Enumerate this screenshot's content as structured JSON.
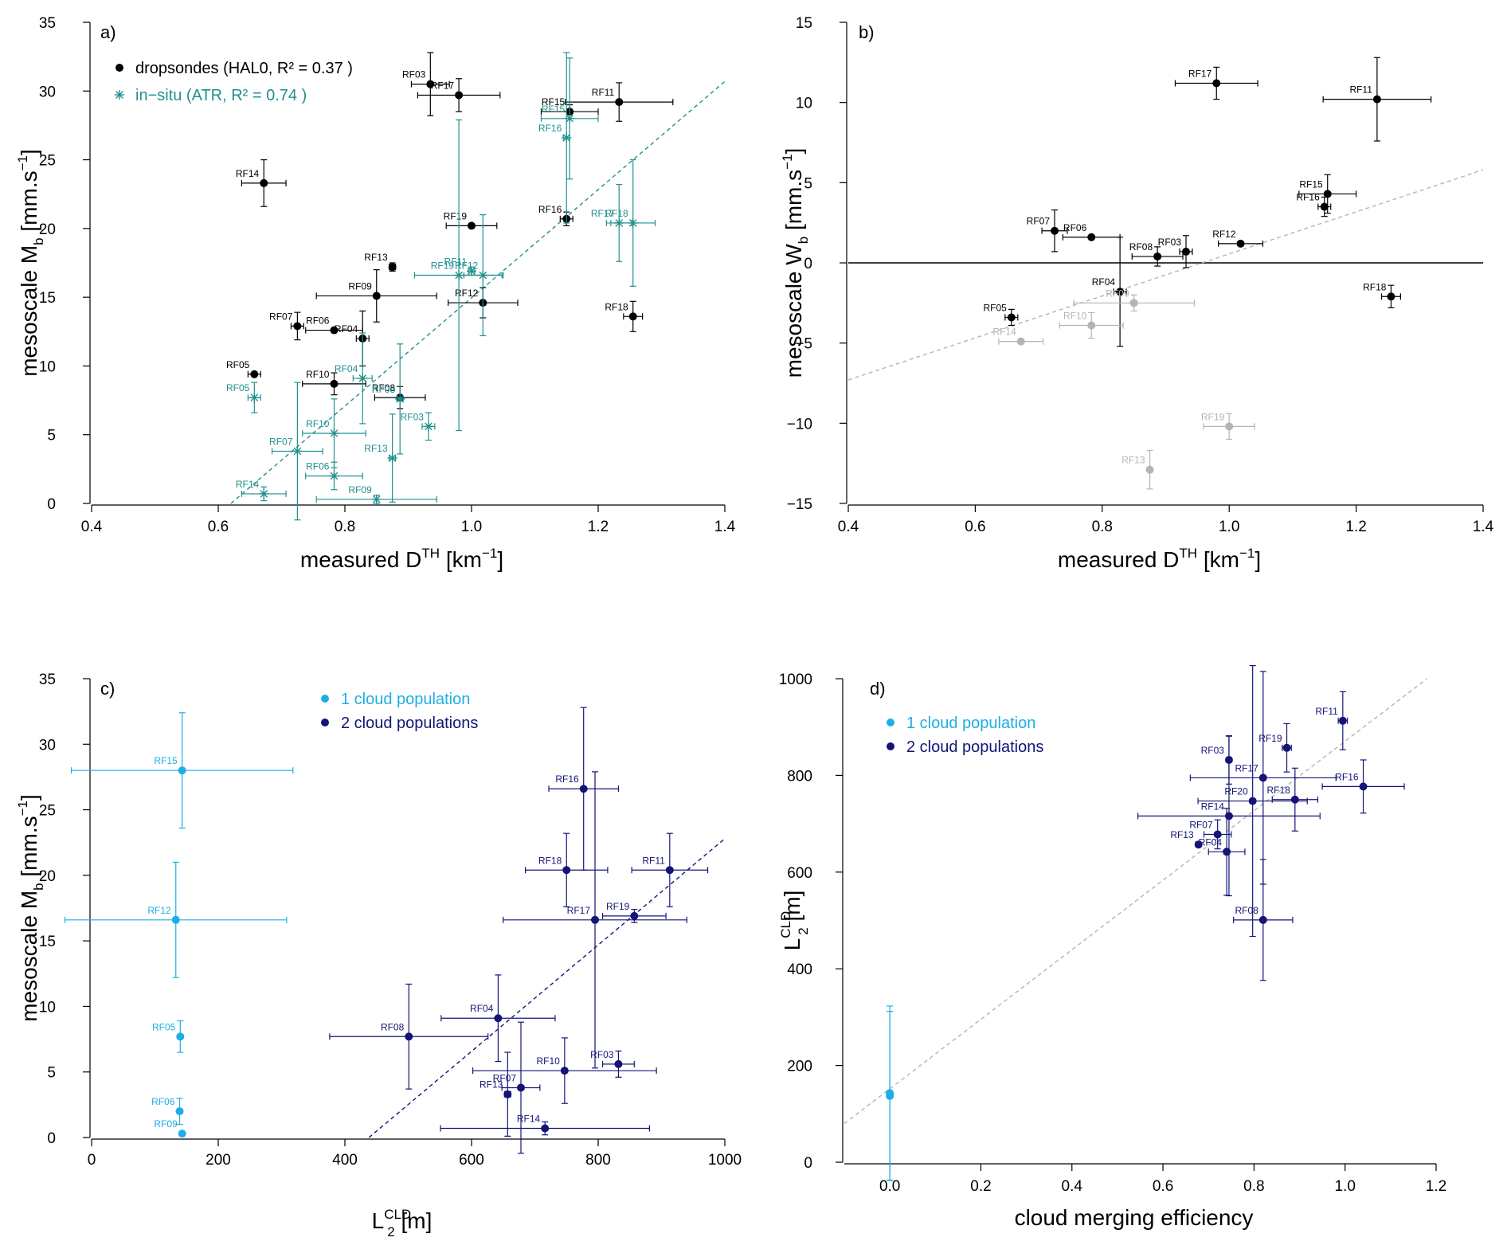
{
  "figure": {
    "panels": [
      {
        "letter": "a)",
        "xlabel": {
          "main": "measured D",
          "sup": "TH",
          "unit_open": " [km",
          "unit_sup": "−1",
          "unit_close": "]"
        },
        "ylabel": {
          "main": "mesoscale M",
          "sub": "b",
          "unit_open": " [mm.s",
          "unit_sup": "−1",
          "unit_close": "]"
        },
        "legend": [
          {
            "label": "dropsondes (HAL0, R² = 0.37 )",
            "color": "#000000",
            "marker": "dot"
          },
          {
            "label": "in−situ (ATR, R² = 0.74 )",
            "color": "#20908e",
            "marker": "star"
          }
        ]
      },
      {
        "letter": "b)",
        "xlabel": {
          "main": "measured D",
          "sup": "TH",
          "unit_open": " [km",
          "unit_sup": "−1",
          "unit_close": "]"
        },
        "ylabel": {
          "main": "mesoscale W",
          "sub": "b",
          "unit_open": " [mm.s",
          "unit_sup": "−1",
          "unit_close": "]"
        },
        "legend": []
      },
      {
        "letter": "c)",
        "xlabel": {
          "main": "L",
          "sub": "2",
          "sup": "CLD",
          "unit_open": " [m]"
        },
        "ylabel": {
          "main": "mesoscale M",
          "sub": "b",
          "unit_open": " [mm.s",
          "unit_sup": "−1",
          "unit_close": "]"
        },
        "legend": [
          {
            "label": "1 cloud population",
            "color": "#1eaee6",
            "marker": "dot"
          },
          {
            "label": "2 cloud populations",
            "color": "#141478",
            "marker": "dot"
          }
        ]
      },
      {
        "letter": "d)",
        "xlabel": {
          "main": "cloud merging efficiency"
        },
        "ylabel": {
          "main": "L",
          "sub": "2",
          "sup": "CLD",
          "unit_open": " [m]"
        },
        "legend": [
          {
            "label": "1 cloud population",
            "color": "#1eaee6",
            "marker": "dot"
          },
          {
            "label": "2 cloud populations",
            "color": "#141478",
            "marker": "dot"
          }
        ]
      }
    ]
  },
  "chart_data": [
    {
      "panel": "a",
      "type": "scatter",
      "xlim": [
        0.4,
        1.4
      ],
      "ylim": [
        0,
        35
      ],
      "xticks": [
        "0.4",
        "0.6",
        "0.8",
        "1.0",
        "1.2",
        "1.4"
      ],
      "yticks": [
        "0",
        "5",
        "10",
        "15",
        "20",
        "25",
        "30",
        "35"
      ],
      "series": [
        {
          "name": "dropsondes (HAL0, R² = 0.37 )",
          "color": "#000000",
          "marker": "dot",
          "points": [
            {
              "label": "RF03",
              "x": 0.935,
              "y": 30.5,
              "xerr": 0.03,
              "yerr": 2.3
            },
            {
              "label": "RF17",
              "x": 0.98,
              "y": 29.7,
              "xerr": 0.065,
              "yerr": 1.2
            },
            {
              "label": "RF11",
              "x": 1.233,
              "y": 29.2,
              "xerr": 0.085,
              "yerr": 1.4
            },
            {
              "label": "RF15",
              "x": 1.155,
              "y": 28.5,
              "xerr": 0.045,
              "yerr": 0.5
            },
            {
              "label": "RF14",
              "x": 0.672,
              "y": 23.3,
              "xerr": 0.035,
              "yerr": 1.7
            },
            {
              "label": "RF16",
              "x": 1.15,
              "y": 20.7,
              "xerr": 0.01,
              "yerr": 0.5
            },
            {
              "label": "RF19",
              "x": 1.0,
              "y": 20.2,
              "xerr": 0.04,
              "yerr": 0.0
            },
            {
              "label": "RF13",
              "x": 0.875,
              "y": 17.2,
              "xerr": 0.005,
              "yerr": 0.3
            },
            {
              "label": "RF09",
              "x": 0.85,
              "y": 15.1,
              "xerr": 0.095,
              "yerr": 1.9
            },
            {
              "label": "RF12",
              "x": 1.018,
              "y": 14.6,
              "xerr": 0.055,
              "yerr": 1.1
            },
            {
              "label": "RF18",
              "x": 1.255,
              "y": 13.6,
              "xerr": 0.015,
              "yerr": 1.1
            },
            {
              "label": "RF07",
              "x": 0.725,
              "y": 12.9,
              "xerr": 0.01,
              "yerr": 1.0
            },
            {
              "label": "RF06",
              "x": 0.783,
              "y": 12.6,
              "xerr": 0.045,
              "yerr": 0.0
            },
            {
              "label": "RF04",
              "x": 0.828,
              "y": 12.0,
              "xerr": 0.01,
              "yerr": 2.0
            },
            {
              "label": "RF05",
              "x": 0.657,
              "y": 9.4,
              "xerr": 0.01,
              "yerr": 0.0
            },
            {
              "label": "RF10",
              "x": 0.783,
              "y": 8.7,
              "xerr": 0.05,
              "yerr": 0.8
            },
            {
              "label": "RF08",
              "x": 0.887,
              "y": 7.7,
              "xerr": 0.04,
              "yerr": 0.8
            }
          ]
        },
        {
          "name": "in−situ (ATR, R² = 0.74 )",
          "color": "#20908e",
          "marker": "star",
          "points": [
            {
              "label": "RF15",
              "x": 1.155,
              "y": 28.0,
              "xerr": 0.045,
              "yerr": 4.4
            },
            {
              "label": "RF16",
              "x": 1.15,
              "y": 26.6,
              "xerr": 0.005,
              "yerr": 6.2
            },
            {
              "label": "RF17",
              "x": 1.233,
              "y": 20.4,
              "xerr": 0.02,
              "yerr": 2.8
            },
            {
              "label": "RF18",
              "x": 1.255,
              "y": 20.4,
              "xerr": 0.035,
              "yerr": 4.6
            },
            {
              "label": "RF19",
              "x": 0.98,
              "y": 16.6,
              "xerr": 0.07,
              "yerr": 11.3
            },
            {
              "label": "RF11",
              "x": 1.0,
              "y": 16.9,
              "xerr": 0.005,
              "yerr": 0.3
            },
            {
              "label": "RF12",
              "x": 1.018,
              "y": 16.6,
              "xerr": 0.03,
              "yerr": 4.4
            },
            {
              "label": "RF04",
              "x": 0.828,
              "y": 9.1,
              "xerr": 0.015,
              "yerr": 3.3
            },
            {
              "label": "RF05",
              "x": 0.657,
              "y": 7.7,
              "xerr": 0.01,
              "yerr": 1.1
            },
            {
              "label": "RF08",
              "x": 0.887,
              "y": 7.6,
              "xerr": 0.005,
              "yerr": 4.0
            },
            {
              "label": "RF03",
              "x": 0.932,
              "y": 5.6,
              "xerr": 0.01,
              "yerr": 1.0
            },
            {
              "label": "RF10",
              "x": 0.783,
              "y": 5.1,
              "xerr": 0.05,
              "yerr": 2.5
            },
            {
              "label": "RF07",
              "x": 0.725,
              "y": 3.8,
              "xerr": 0.04,
              "yerr": 5.0
            },
            {
              "label": "RF13",
              "x": 0.875,
              "y": 3.3,
              "xerr": 0.005,
              "yerr": 3.2
            },
            {
              "label": "RF06",
              "x": 0.783,
              "y": 2.0,
              "xerr": 0.045,
              "yerr": 1.0
            },
            {
              "label": "RF14",
              "x": 0.672,
              "y": 0.7,
              "xerr": 0.035,
              "yerr": 0.5
            },
            {
              "label": "RF09",
              "x": 0.85,
              "y": 0.3,
              "xerr": 0.095,
              "yerr": 0.3
            }
          ]
        }
      ],
      "fit_lines": [
        {
          "color": "#20908e",
          "dash": true,
          "from": [
            0.62,
            0.0
          ],
          "to": [
            1.4,
            30.7
          ]
        }
      ],
      "hline": null
    },
    {
      "panel": "b",
      "type": "scatter",
      "xlim": [
        0.4,
        1.4
      ],
      "ylim": [
        -15,
        15
      ],
      "xticks": [
        "0.4",
        "0.6",
        "0.8",
        "1.0",
        "1.2",
        "1.4"
      ],
      "yticks": [
        "−15",
        "−10",
        "−5",
        "0",
        "5",
        "10",
        "15"
      ],
      "series": [
        {
          "name": "",
          "color": "#000000",
          "marker": "dot",
          "points": [
            {
              "label": "RF17",
              "x": 0.98,
              "y": 11.2,
              "xerr": 0.065,
              "yerr": 1.0
            },
            {
              "label": "RF11",
              "x": 1.233,
              "y": 10.2,
              "xerr": 0.085,
              "yerr": 2.6
            },
            {
              "label": "RF15",
              "x": 1.155,
              "y": 4.3,
              "xerr": 0.045,
              "yerr": 1.2
            },
            {
              "label": "RF16",
              "x": 1.15,
              "y": 3.5,
              "xerr": 0.01,
              "yerr": 0.6
            },
            {
              "label": "RF07",
              "x": 0.725,
              "y": 2.0,
              "xerr": 0.02,
              "yerr": 1.3
            },
            {
              "label": "RF06",
              "x": 0.783,
              "y": 1.6,
              "xerr": 0.045,
              "yerr": 0.0
            },
            {
              "label": "RF12",
              "x": 1.018,
              "y": 1.2,
              "xerr": 0.035,
              "yerr": 0.0
            },
            {
              "label": "RF03",
              "x": 0.932,
              "y": 0.7,
              "xerr": 0.01,
              "yerr": 1.0
            },
            {
              "label": "RF08",
              "x": 0.887,
              "y": 0.4,
              "xerr": 0.04,
              "yerr": 0.6
            },
            {
              "label": "RF04",
              "x": 0.828,
              "y": -1.8,
              "xerr": 0.01,
              "yerr": 3.4
            },
            {
              "label": "RF18",
              "x": 1.255,
              "y": -2.1,
              "xerr": 0.015,
              "yerr": 0.7
            },
            {
              "label": "RF05",
              "x": 0.657,
              "y": -3.4,
              "xerr": 0.01,
              "yerr": 0.5
            }
          ]
        },
        {
          "name": "",
          "color": "#b4b4b4",
          "marker": "dot",
          "points": [
            {
              "label": "RF09",
              "x": 0.85,
              "y": -2.5,
              "xerr": 0.095,
              "yerr": 0.5
            },
            {
              "label": "RF10",
              "x": 0.783,
              "y": -3.9,
              "xerr": 0.05,
              "yerr": 0.8
            },
            {
              "label": "RF14",
              "x": 0.672,
              "y": -4.9,
              "xerr": 0.035,
              "yerr": 0.0
            },
            {
              "label": "RF19",
              "x": 1.0,
              "y": -10.2,
              "xerr": 0.04,
              "yerr": 0.8
            },
            {
              "label": "RF13",
              "x": 0.875,
              "y": -12.9,
              "xerr": 0.0,
              "yerr": 1.2
            }
          ]
        }
      ],
      "fit_lines": [
        {
          "color": "#b4b4b4",
          "dash": true,
          "from": [
            0.4,
            -7.3
          ],
          "to": [
            1.4,
            5.8
          ]
        }
      ],
      "hline": {
        "y": 0,
        "color": "#000000"
      }
    },
    {
      "panel": "c",
      "type": "scatter",
      "xlim": [
        0,
        1000
      ],
      "ylim": [
        0,
        35
      ],
      "xticks": [
        "0",
        "200",
        "400",
        "600",
        "800",
        "1000"
      ],
      "yticks": [
        "0",
        "5",
        "10",
        "15",
        "20",
        "25",
        "30",
        "35"
      ],
      "series": [
        {
          "name": "1 cloud population",
          "color": "#1eaee6",
          "marker": "dot",
          "points": [
            {
              "label": "RF15",
              "x": 143,
              "y": 28.0,
              "xerr": 175,
              "yerr": 4.4
            },
            {
              "label": "RF12",
              "x": 133,
              "y": 16.6,
              "xerr": 175,
              "yerr": 4.4
            },
            {
              "label": "RF05",
              "x": 140,
              "y": 7.7,
              "xerr": 0,
              "yerr": 1.2
            },
            {
              "label": "RF06",
              "x": 139,
              "y": 2.0,
              "xerr": 0,
              "yerr": 1.0
            },
            {
              "label": "RF09",
              "x": 143,
              "y": 0.3,
              "xerr": 0,
              "yerr": 0.0
            }
          ]
        },
        {
          "name": "2 cloud populations",
          "color": "#141478",
          "marker": "dot",
          "points": [
            {
              "label": "RF16",
              "x": 777,
              "y": 26.6,
              "xerr": 55,
              "yerr": 6.2
            },
            {
              "label": "RF18",
              "x": 750,
              "y": 20.4,
              "xerr": 65,
              "yerr": 2.8
            },
            {
              "label": "RF11",
              "x": 913,
              "y": 20.4,
              "xerr": 60,
              "yerr": 2.8
            },
            {
              "label": "RF17",
              "x": 795,
              "y": 16.6,
              "xerr": 145,
              "yerr": 11.3
            },
            {
              "label": "RF19",
              "x": 857,
              "y": 16.9,
              "xerr": 50,
              "yerr": 0.5
            },
            {
              "label": "RF04",
              "x": 642,
              "y": 9.1,
              "xerr": 90,
              "yerr": 3.3
            },
            {
              "label": "RF08",
              "x": 501,
              "y": 7.7,
              "xerr": 125,
              "yerr": 4.0
            },
            {
              "label": "RF03",
              "x": 832,
              "y": 5.6,
              "xerr": 25,
              "yerr": 1.0
            },
            {
              "label": "RF10",
              "x": 747,
              "y": 5.1,
              "xerr": 145,
              "yerr": 2.5
            },
            {
              "label": "RF07",
              "x": 678,
              "y": 3.8,
              "xerr": 30,
              "yerr": 5.0
            },
            {
              "label": "RF13",
              "x": 657,
              "y": 3.3,
              "xerr": 5,
              "yerr": 3.2
            },
            {
              "label": "RF14",
              "x": 716,
              "y": 0.7,
              "xerr": 165,
              "yerr": 0.5
            }
          ]
        }
      ],
      "fit_lines": [
        {
          "color": "#141478",
          "dash": true,
          "from": [
            438,
            0.0
          ],
          "to": [
            1000,
            22.8
          ]
        }
      ],
      "hline": null
    },
    {
      "panel": "d",
      "type": "scatter",
      "xlim": [
        -0.1,
        1.2
      ],
      "ylim": [
        0,
        1000
      ],
      "xticks": [
        "0.0",
        "0.2",
        "0.4",
        "0.6",
        "0.8",
        "1.0",
        "1.2"
      ],
      "yticks": [
        "0",
        "200",
        "400",
        "600",
        "800",
        "1000"
      ],
      "series": [
        {
          "name": "1 cloud population",
          "color": "#1eaee6",
          "marker": "dot",
          "points": [
            {
              "label": "",
              "x": 0.0,
              "y": 143,
              "xerr": 0,
              "yerr": 180
            },
            {
              "label": "",
              "x": 0.0,
              "y": 137,
              "xerr": 0,
              "yerr": 175
            }
          ]
        },
        {
          "name": "2 cloud populations",
          "color": "#141478",
          "marker": "dot",
          "points": [
            {
              "label": "RF11",
              "x": 0.995,
              "y": 913,
              "xerr": 0.01,
              "yerr": 60
            },
            {
              "label": "RF19",
              "x": 0.872,
              "y": 857,
              "xerr": 0.01,
              "yerr": 50
            },
            {
              "label": "RF03",
              "x": 0.745,
              "y": 832,
              "xerr": 0.005,
              "yerr": 50
            },
            {
              "label": "RF17",
              "x": 0.82,
              "y": 795,
              "xerr": 0.16,
              "yerr": 220
            },
            {
              "label": "RF16",
              "x": 1.04,
              "y": 777,
              "xerr": 0.09,
              "yerr": 55
            },
            {
              "label": "RF20",
              "x": 0.797,
              "y": 747,
              "xerr": 0.12,
              "yerr": 280
            },
            {
              "label": "RF18",
              "x": 0.89,
              "y": 750,
              "xerr": 0.05,
              "yerr": 65
            },
            {
              "label": "RF14",
              "x": 0.745,
              "y": 716,
              "xerr": 0.2,
              "yerr": 165
            },
            {
              "label": "RF07",
              "x": 0.72,
              "y": 678,
              "xerr": 0.03,
              "yerr": 30
            },
            {
              "label": "RF13",
              "x": 0.678,
              "y": 657,
              "xerr": 0.005,
              "yerr": 5
            },
            {
              "label": "RF04",
              "x": 0.74,
              "y": 642,
              "xerr": 0.04,
              "yerr": 90
            },
            {
              "label": "RF08",
              "x": 0.82,
              "y": 501,
              "xerr": 0.065,
              "yerr": 125
            }
          ]
        }
      ],
      "fit_lines": [
        {
          "color": "#b4b4b4",
          "dash": true,
          "from": [
            -0.1,
            80
          ],
          "to": [
            1.18,
            1000
          ]
        }
      ],
      "hline": null
    }
  ]
}
